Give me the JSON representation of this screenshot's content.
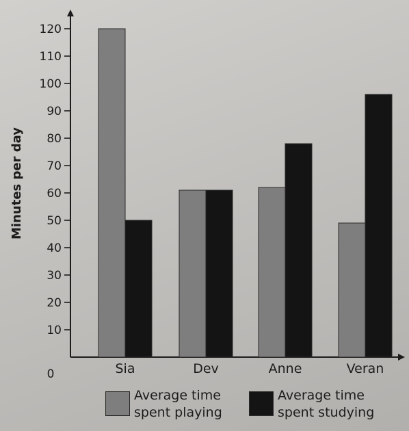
{
  "chart_data": {
    "type": "bar",
    "title": "",
    "xlabel": "",
    "ylabel": "Minutes per day",
    "ylim": [
      0,
      120
    ],
    "yticks": [
      10,
      20,
      30,
      40,
      50,
      60,
      70,
      80,
      90,
      100,
      110,
      120
    ],
    "origin_label": "0",
    "grid": false,
    "legend_position": "bottom",
    "categories": [
      "Sia",
      "Dev",
      "Anne",
      "Veran"
    ],
    "series": [
      {
        "name": "Average time spent playing",
        "name_lines": [
          "Average time",
          "spent playing"
        ],
        "color": "#7e7e7e",
        "values": [
          120,
          61,
          62,
          49
        ]
      },
      {
        "name": "Average time spent studying",
        "name_lines": [
          "Average time",
          "spent studying"
        ],
        "color": "#141414",
        "values": [
          50,
          61,
          78,
          96
        ]
      }
    ]
  }
}
